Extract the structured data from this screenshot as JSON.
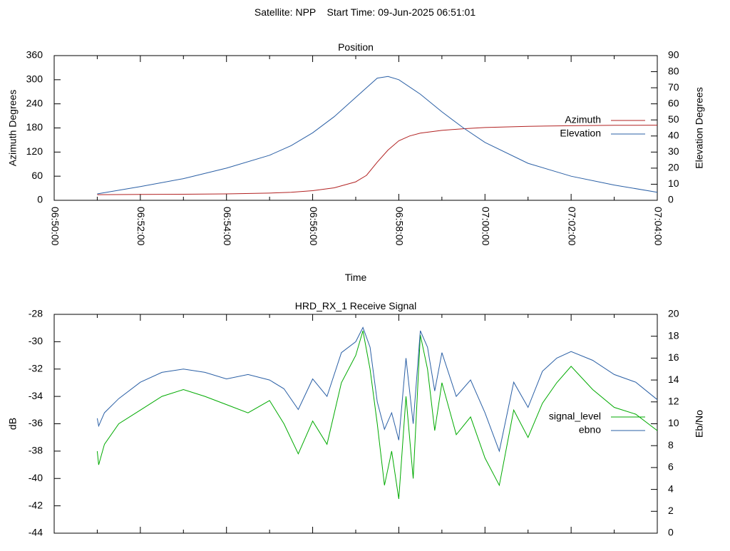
{
  "header": {
    "title": "Satellite: NPP    Start Time: 09-Jun-2025 06:51:01"
  },
  "chart_data": [
    {
      "type": "line",
      "title": "Position",
      "xlabel": "Time",
      "ylabel": "Azimuth Degrees",
      "ylabel_right": "Elevation Degrees",
      "xlim": [
        "06:50:00",
        "07:04:00"
      ],
      "ylim": [
        0,
        360
      ],
      "ylim_right": [
        0,
        90
      ],
      "x_ticks": [
        "06:50:00",
        "06:52:00",
        "06:54:00",
        "06:56:00",
        "06:58:00",
        "07:00:00",
        "07:02:00",
        "07:04:00"
      ],
      "y_ticks": [
        "0",
        "60",
        "120",
        "180",
        "240",
        "300",
        "360"
      ],
      "y_ticks_right": [
        "0",
        "10",
        "20",
        "30",
        "40",
        "50",
        "60",
        "70",
        "80",
        "90"
      ],
      "grid": false,
      "legend_position": "right",
      "series": [
        {
          "name": "Azimuth",
          "axis": "left",
          "color": "#b22222",
          "x": [
            "06:51:00",
            "06:52:00",
            "06:53:00",
            "06:54:00",
            "06:55:00",
            "06:55:30",
            "06:56:00",
            "06:56:30",
            "06:57:00",
            "06:57:15",
            "06:57:30",
            "06:57:45",
            "06:58:00",
            "06:58:15",
            "06:58:30",
            "06:59:00",
            "06:59:30",
            "07:00:00",
            "07:01:00",
            "07:02:00",
            "07:03:00",
            "07:04:00"
          ],
          "values": [
            14,
            14.5,
            15,
            16,
            18,
            20,
            24,
            31,
            46,
            62,
            95,
            125,
            148,
            160,
            167,
            174,
            178,
            181,
            184,
            185.5,
            186.5,
            187
          ]
        },
        {
          "name": "Elevation",
          "axis": "right",
          "color": "#2a5fa5",
          "x": [
            "06:51:00",
            "06:52:00",
            "06:53:00",
            "06:54:00",
            "06:55:00",
            "06:55:30",
            "06:56:00",
            "06:56:30",
            "06:57:00",
            "06:57:30",
            "06:57:45",
            "06:58:00",
            "06:58:30",
            "06:59:00",
            "06:59:30",
            "07:00:00",
            "07:01:00",
            "07:02:00",
            "07:03:00",
            "07:04:00"
          ],
          "values": [
            4,
            8.5,
            13.5,
            20,
            28,
            34,
            42,
            52,
            64,
            76,
            77,
            75,
            66,
            55,
            45,
            36,
            23,
            15,
            9.5,
            5
          ]
        }
      ]
    },
    {
      "type": "line",
      "title": "HRD_RX_1 Receive Signal",
      "ylabel": "dB",
      "ylabel_right": "Eb/No",
      "xlim": [
        "06:50:00",
        "07:04:00"
      ],
      "ylim": [
        -44,
        -28
      ],
      "ylim_right": [
        0,
        20
      ],
      "y_ticks": [
        "-44",
        "-42",
        "-40",
        "-38",
        "-36",
        "-34",
        "-32",
        "-30",
        "-28"
      ],
      "y_ticks_right": [
        "0",
        "2",
        "4",
        "6",
        "8",
        "10",
        "12",
        "14",
        "16",
        "18",
        "20"
      ],
      "grid": false,
      "legend_position": "right",
      "series": [
        {
          "name": "signal_level",
          "axis": "left",
          "color": "#00aa00",
          "x": [
            "06:51:00",
            "06:51:02",
            "06:51:10",
            "06:51:30",
            "06:52:00",
            "06:52:30",
            "06:53:00",
            "06:53:30",
            "06:54:00",
            "06:54:30",
            "06:55:00",
            "06:55:20",
            "06:55:40",
            "06:56:00",
            "06:56:20",
            "06:56:40",
            "06:57:00",
            "06:57:10",
            "06:57:20",
            "06:57:30",
            "06:57:40",
            "06:57:50",
            "06:58:00",
            "06:58:10",
            "06:58:20",
            "06:58:30",
            "06:58:40",
            "06:58:50",
            "06:59:00",
            "06:59:20",
            "06:59:40",
            "07:00:00",
            "07:00:20",
            "07:00:40",
            "07:01:00",
            "07:01:20",
            "07:01:40",
            "07:02:00",
            "07:02:30",
            "07:03:00",
            "07:03:30",
            "07:04:00"
          ],
          "values": [
            -38,
            -39,
            -37.5,
            -36,
            -35,
            -34,
            -33.5,
            -34,
            -34.6,
            -35.2,
            -34.3,
            -36,
            -38.2,
            -35.8,
            -37.5,
            -33,
            -31,
            -29.2,
            -32,
            -36,
            -40.5,
            -38,
            -41.5,
            -34,
            -40,
            -29.5,
            -32,
            -36.5,
            -33,
            -36.8,
            -35.5,
            -38.5,
            -40.5,
            -35,
            -37,
            -34.5,
            -33,
            -31.8,
            -33.5,
            -34.8,
            -35.3,
            -36.5
          ]
        },
        {
          "name": "ebno",
          "axis": "right",
          "color": "#2a5fa5",
          "x": [
            "06:51:00",
            "06:51:02",
            "06:51:10",
            "06:51:30",
            "06:52:00",
            "06:52:30",
            "06:53:00",
            "06:53:30",
            "06:54:00",
            "06:54:30",
            "06:55:00",
            "06:55:20",
            "06:55:40",
            "06:56:00",
            "06:56:20",
            "06:56:40",
            "06:57:00",
            "06:57:10",
            "06:57:20",
            "06:57:30",
            "06:57:40",
            "06:57:50",
            "06:58:00",
            "06:58:10",
            "06:58:20",
            "06:58:30",
            "06:58:40",
            "06:58:50",
            "06:59:00",
            "06:59:20",
            "06:59:40",
            "07:00:00",
            "07:00:20",
            "07:00:40",
            "07:01:00",
            "07:01:20",
            "07:01:40",
            "07:02:00",
            "07:02:30",
            "07:03:00",
            "07:03:30",
            "07:04:00"
          ],
          "values": [
            10.5,
            9.8,
            11,
            12.3,
            13.8,
            14.7,
            15,
            14.7,
            14.1,
            14.5,
            14,
            13.2,
            11.3,
            14.1,
            12.5,
            16.5,
            17.5,
            18.8,
            17,
            12,
            9.5,
            11,
            8.5,
            16,
            10,
            18.5,
            17,
            13,
            16.5,
            12.5,
            14,
            11,
            7.5,
            13.8,
            11.5,
            14.8,
            16,
            16.6,
            15.8,
            14.5,
            13.8,
            12.2
          ]
        }
      ]
    }
  ]
}
